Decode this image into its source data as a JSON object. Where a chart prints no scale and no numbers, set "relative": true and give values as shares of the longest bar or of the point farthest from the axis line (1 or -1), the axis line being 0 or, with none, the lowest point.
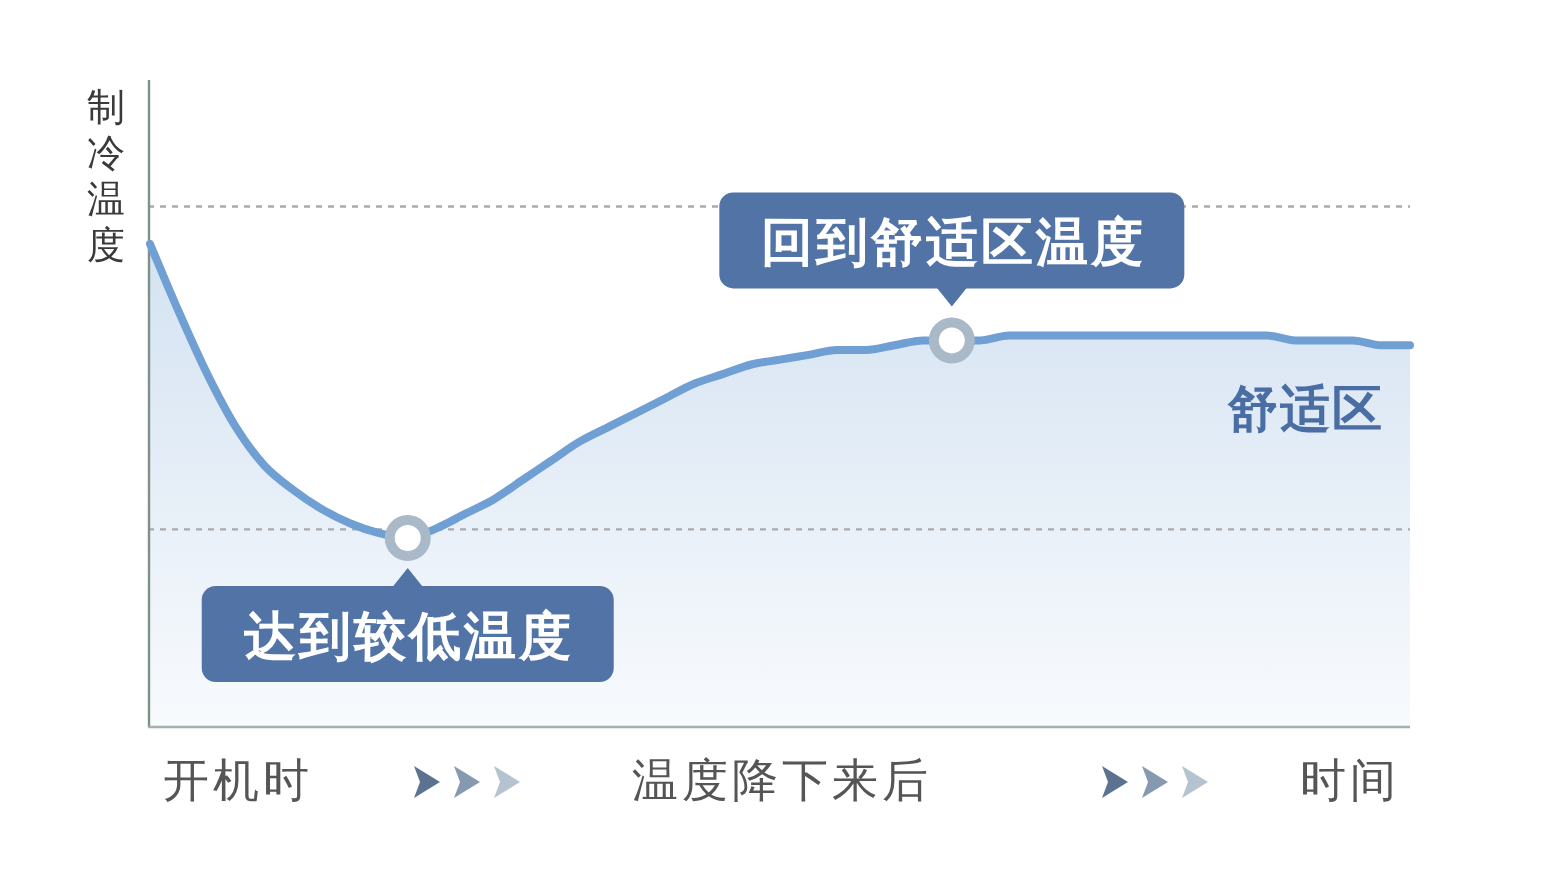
{
  "chart_data": {
    "type": "area",
    "relative": true,
    "ylabel": "制冷温度",
    "xlabel": "时间",
    "categories": [
      null,
      null,
      null,
      "开机时",
      null,
      null,
      null,
      null,
      null,
      null,
      null,
      null,
      null,
      null,
      null,
      null,
      null,
      null,
      null,
      null,
      null,
      null,
      "温度降下来后",
      null,
      null,
      null,
      null,
      null,
      null,
      null,
      null,
      null,
      null,
      null,
      null,
      null,
      null,
      null,
      null,
      null,
      null,
      null,
      null,
      null,
      null
    ],
    "series": [
      {
        "color": "#6f9fd3",
        "values": [
          1.0,
          0.86,
          0.73,
          0.62,
          0.54,
          0.49,
          0.45,
          0.42,
          0.4,
          0.39,
          0.41,
          0.44,
          0.47,
          0.51,
          0.55,
          0.59,
          0.62,
          0.65,
          0.68,
          0.71,
          0.73,
          0.75,
          0.76,
          0.77,
          0.78,
          0.78,
          0.79,
          0.8,
          0.8,
          0.8,
          0.81,
          0.81,
          0.81,
          0.81,
          0.81,
          0.81,
          0.81,
          0.81,
          0.81,
          0.81,
          0.8,
          0.8,
          0.8,
          0.79,
          0.79
        ]
      },
      {
        "type": "scatter",
        "color": "#a9b9c7",
        "marker": "circle",
        "values": [
          null,
          null,
          null,
          null,
          null,
          null,
          null,
          null,
          null,
          0.39,
          null,
          null,
          null,
          null,
          null,
          null,
          null,
          null,
          null,
          null,
          null,
          null,
          null,
          null,
          null,
          null,
          null,
          null,
          0.8,
          null,
          null,
          null,
          null,
          null,
          null,
          null,
          null,
          null,
          null,
          null,
          null,
          null,
          null,
          null,
          null
        ]
      }
    ],
    "ref_lines": [
      {
        "axis": "y",
        "value": 1.08,
        "line_style": "dashed",
        "color": "#aaaaaa"
      },
      {
        "axis": "y",
        "value": 0.41,
        "line_style": "dashed",
        "color": "#aaaaaa"
      }
    ],
    "annotations": [
      {
        "text": "达到较低温度",
        "y": 0.39
      },
      {
        "text": "回到舒适区温度",
        "y": 0.8
      },
      "舒适区"
    ]
  }
}
